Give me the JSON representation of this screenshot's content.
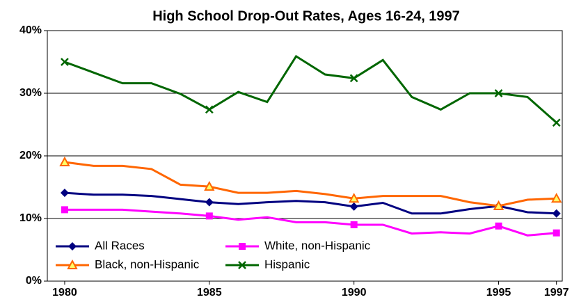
{
  "chart_data": {
    "type": "line",
    "title": "High School Drop-Out Rates, Ages 16-24, 1997",
    "x": [
      1980,
      1981,
      1982,
      1983,
      1984,
      1985,
      1986,
      1987,
      1988,
      1989,
      1990,
      1991,
      1992,
      1993,
      1994,
      1995,
      1996,
      1997
    ],
    "series": [
      {
        "name": "All Races",
        "color": "#000080",
        "marker": "diamond",
        "values": [
          14.1,
          13.8,
          13.8,
          13.6,
          13.1,
          12.6,
          12.3,
          12.6,
          12.8,
          12.6,
          11.9,
          12.5,
          10.8,
          10.8,
          11.5,
          12.0,
          11.0,
          10.8
        ]
      },
      {
        "name": "White, non-Hispanic",
        "color": "#ff00ff",
        "marker": "square",
        "values": [
          11.4,
          11.4,
          11.4,
          11.1,
          10.8,
          10.4,
          9.8,
          10.2,
          9.4,
          9.4,
          9.0,
          9.0,
          7.6,
          7.8,
          7.6,
          8.8,
          7.3,
          7.7
        ]
      },
      {
        "name": "Black, non-Hispanic",
        "color": "#ff6600",
        "marker": "triangle",
        "marker_fill": "#ffff66",
        "values": [
          19.0,
          18.4,
          18.4,
          17.9,
          15.4,
          15.1,
          14.1,
          14.1,
          14.4,
          13.9,
          13.2,
          13.6,
          13.6,
          13.6,
          12.6,
          12.0,
          13.0,
          13.2
        ]
      },
      {
        "name": "Hispanic",
        "color": "#006600",
        "marker": "x",
        "values": [
          35.0,
          33.3,
          31.6,
          31.6,
          29.9,
          27.4,
          30.2,
          28.6,
          35.9,
          33.0,
          32.4,
          35.3,
          29.4,
          27.4,
          30.0,
          30.0,
          29.4,
          25.3
        ]
      }
    ],
    "xlim": [
      1979.4,
      1997.2
    ],
    "xticks": [
      1980,
      1985,
      1990,
      1995,
      1997
    ],
    "ylim": [
      0,
      40
    ],
    "yticks": [
      {
        "value": 0,
        "label": "0%"
      },
      {
        "value": 10,
        "label": "10%"
      },
      {
        "value": 20,
        "label": "20%"
      },
      {
        "value": 30,
        "label": "30%"
      },
      {
        "value": 40,
        "label": "40%"
      }
    ],
    "grid": true,
    "legend": "lower left"
  }
}
